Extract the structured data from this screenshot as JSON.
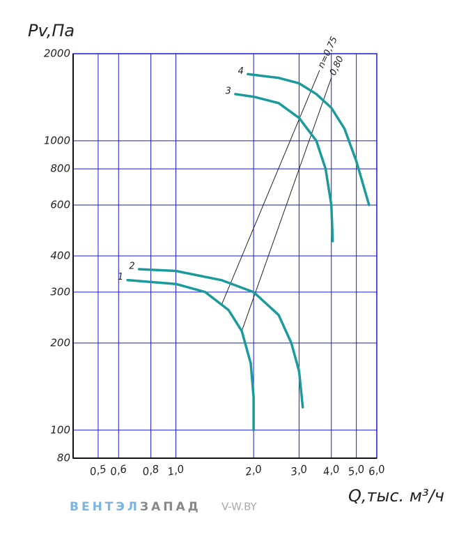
{
  "chart_data": {
    "type": "line",
    "y_label": "Pv,Па",
    "x_label": "Q,тыс. м³/ч",
    "log_x": true,
    "log_y": true,
    "grid": true,
    "xlim": [
      0.4,
      6.0
    ],
    "ylim": [
      80,
      2000
    ],
    "xticks": [
      {
        "value": 0.5,
        "label": "0,5"
      },
      {
        "value": 0.6,
        "label": "0,6"
      },
      {
        "value": 0.8,
        "label": "0,8"
      },
      {
        "value": 1.0,
        "label": "1,0"
      },
      {
        "value": 2.0,
        "label": "2,0"
      },
      {
        "value": 3.0,
        "label": "3,0"
      },
      {
        "value": 4.0,
        "label": "4,0"
      },
      {
        "value": 5.0,
        "label": "5,0"
      },
      {
        "value": 6.0,
        "label": "6,0"
      }
    ],
    "yticks": [
      80,
      100,
      200,
      300,
      400,
      600,
      800,
      1000,
      2000
    ],
    "series": [
      {
        "name": "1",
        "color": "#1a9a9a",
        "x": [
          0.65,
          1.0,
          1.3,
          1.6,
          1.8,
          1.95,
          2.0,
          2.0
        ],
        "values": [
          330,
          320,
          300,
          260,
          220,
          170,
          130,
          100
        ]
      },
      {
        "name": "2",
        "color": "#1a9a9a",
        "x": [
          0.72,
          1.0,
          1.5,
          2.0,
          2.5,
          2.8,
          3.0,
          3.1
        ],
        "values": [
          360,
          355,
          330,
          300,
          250,
          200,
          160,
          120
        ]
      },
      {
        "name": "3",
        "color": "#1a9a9a",
        "x": [
          1.7,
          2.0,
          2.5,
          3.0,
          3.5,
          3.8,
          4.0,
          4.05
        ],
        "values": [
          1450,
          1420,
          1350,
          1200,
          1000,
          800,
          600,
          450
        ]
      },
      {
        "name": "4",
        "color": "#1a9a9a",
        "x": [
          1.9,
          2.5,
          3.0,
          3.5,
          4.0,
          4.5,
          5.0,
          5.6
        ],
        "values": [
          1700,
          1650,
          1580,
          1450,
          1300,
          1100,
          850,
          600
        ]
      }
    ],
    "efficiency_lines": [
      {
        "name": "n=0,75",
        "color": "#222222",
        "x": [
          1.5,
          3.6
        ],
        "values": [
          270,
          1750
        ]
      },
      {
        "name": "0,80",
        "color": "#222222",
        "x": [
          1.8,
          4.0
        ],
        "values": [
          220,
          1650
        ]
      }
    ]
  },
  "watermark": {
    "brand_a": "ВЕНТЭЛ",
    "brand_b": "ЗАПАД",
    "site": "V-W.BY"
  }
}
